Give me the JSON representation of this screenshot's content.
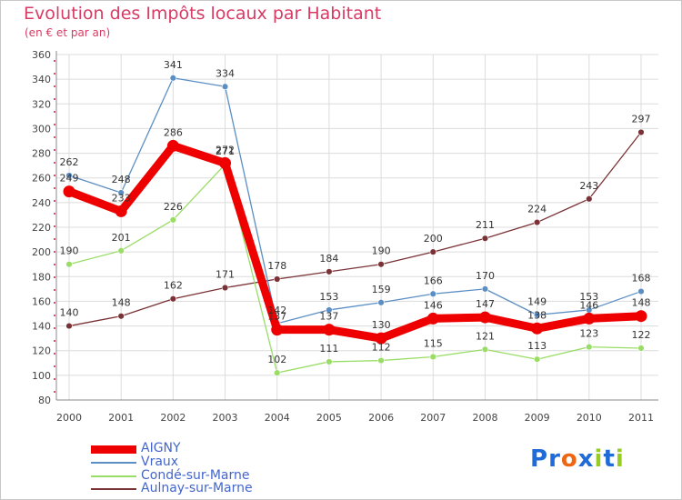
{
  "page": {
    "title": "Evolution des Impôts locaux par Habitant",
    "subtitle": "(en € et par an)"
  },
  "chart_data": {
    "type": "line",
    "title": "Evolution des Impôts locaux par Habitant",
    "subtitle": "(en € et par an)",
    "xlabel": "",
    "ylabel": "",
    "ylim": [
      80,
      360
    ],
    "ytick_step": 20,
    "grid": true,
    "categories": [
      "2000",
      "2001",
      "2002",
      "2003",
      "2004",
      "2005",
      "2006",
      "2007",
      "2008",
      "2009",
      "2010",
      "2011"
    ],
    "series": [
      {
        "name": "AIGNY",
        "color": "#ee0000",
        "values": [
          249,
          233,
          286,
          272,
          137,
          137,
          130,
          146,
          147,
          138,
          146,
          148
        ]
      },
      {
        "name": "Vraux",
        "color": "#5b8fc4",
        "values": [
          262,
          248,
          341,
          334,
          142,
          153,
          159,
          166,
          170,
          149,
          153,
          168
        ]
      },
      {
        "name": "Condé-sur-Marne",
        "color": "#99dd66",
        "values": [
          190,
          201,
          226,
          271,
          102,
          111,
          112,
          115,
          121,
          113,
          123,
          122
        ]
      },
      {
        "name": "Aulnay-sur-Marne",
        "color": "#7a3236",
        "values": [
          140,
          148,
          162,
          171,
          178,
          184,
          190,
          200,
          211,
          224,
          243,
          297
        ]
      }
    ]
  },
  "logo": {
    "letters": [
      "P",
      "r",
      "o",
      "x",
      "i",
      "t",
      "i"
    ],
    "colors": [
      "#1f6bd8",
      "#1f6bd8",
      "#ee6611",
      "#1f6bd8",
      "#99cc22",
      "#1f6bd8",
      "#99cc22"
    ]
  }
}
